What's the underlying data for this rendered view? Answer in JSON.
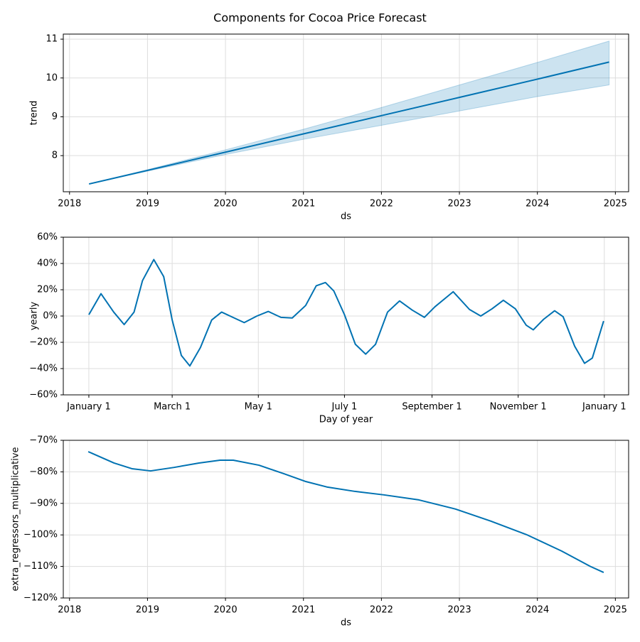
{
  "title": "Components for Cocoa Price Forecast",
  "chart_data": [
    {
      "type": "line",
      "xlabel": "ds",
      "ylabel": "trend",
      "color": "#0072b2",
      "band_color": "#0072b2",
      "grid": true,
      "x": [
        2018.25,
        2019,
        2020,
        2021,
        2022,
        2023,
        2024,
        2024.92
      ],
      "values": [
        7.27,
        7.62,
        8.09,
        8.56,
        9.03,
        9.5,
        9.97,
        10.41
      ],
      "lower": [
        7.27,
        7.6,
        8.03,
        8.42,
        8.78,
        9.15,
        9.52,
        9.82
      ],
      "upper": [
        7.27,
        7.64,
        8.15,
        8.68,
        9.24,
        9.82,
        10.4,
        10.95
      ],
      "xlim": [
        2017.92,
        2025.17
      ],
      "xticks": [
        2018,
        2019,
        2020,
        2021,
        2022,
        2023,
        2024,
        2025
      ],
      "ylim": [
        7.07,
        11.13
      ],
      "yticks": [
        8,
        9,
        10,
        11
      ]
    },
    {
      "type": "line",
      "xlabel": "Day of year",
      "ylabel": "yearly",
      "color": "#0072b2",
      "grid": true,
      "x": [
        0,
        8.6,
        17.6,
        25,
        32,
        38,
        46,
        53,
        59,
        65.5,
        71.5,
        79,
        87,
        94,
        102,
        110,
        119,
        127,
        136,
        144,
        153.5,
        161,
        167.5,
        173.5,
        181,
        188.7,
        196,
        203,
        211.5,
        220,
        229,
        237.6,
        245,
        258,
        269.5,
        277.5,
        285.5,
        293.5,
        302,
        309.7,
        314.7,
        322,
        329.8,
        335.8,
        344,
        351,
        356.5,
        364.5
      ],
      "values": [
        1,
        17,
        3,
        -6.5,
        3,
        27,
        43,
        30,
        -3,
        -30,
        -38,
        -24,
        -3,
        3,
        -1,
        -5,
        0,
        3.5,
        -1,
        -1.5,
        8,
        23,
        25.5,
        19,
        1,
        -21.5,
        -29,
        -21.5,
        3,
        11.5,
        4.5,
        -1,
        7,
        18.5,
        5,
        0,
        5.5,
        12,
        5.5,
        -7,
        -10.5,
        -2.5,
        4,
        -0.5,
        -23,
        -36,
        -32,
        -3.8
      ],
      "xlim": [
        -18.1,
        382.2
      ],
      "xticks": [
        {
          "value": 0,
          "label": "January 1"
        },
        {
          "value": 59,
          "label": "March 1"
        },
        {
          "value": 120,
          "label": "May 1"
        },
        {
          "value": 181,
          "label": "July 1"
        },
        {
          "value": 243,
          "label": "September 1"
        },
        {
          "value": 304,
          "label": "November 1"
        },
        {
          "value": 365,
          "label": "January 1"
        }
      ],
      "ylim": [
        -60,
        60
      ],
      "yticks": [
        {
          "value": -60,
          "label": "−60%"
        },
        {
          "value": -40,
          "label": "−40%"
        },
        {
          "value": -20,
          "label": "−20%"
        },
        {
          "value": 0,
          "label": "0%"
        },
        {
          "value": 20,
          "label": "20%"
        },
        {
          "value": 40,
          "label": "40%"
        },
        {
          "value": 60,
          "label": "60%"
        }
      ]
    },
    {
      "type": "line",
      "xlabel": "ds",
      "ylabel": "extra_regressors_multiplicative",
      "color": "#0072b2",
      "grid": true,
      "x": [
        2018.24,
        2018.57,
        2018.8,
        2019.04,
        2019.34,
        2019.66,
        2019.93,
        2020.1,
        2020.43,
        2020.75,
        2021.02,
        2021.3,
        2021.66,
        2022.03,
        2022.48,
        2022.95,
        2023.4,
        2023.86,
        2024.31,
        2024.68,
        2024.85
      ],
      "values": [
        -73.6,
        -77.2,
        -79,
        -79.7,
        -78.6,
        -77.2,
        -76.3,
        -76.3,
        -77.9,
        -80.6,
        -83,
        -84.8,
        -86.2,
        -87.3,
        -88.9,
        -91.8,
        -95.6,
        -99.9,
        -105.1,
        -110,
        -111.9
      ],
      "xlim": [
        2017.92,
        2025.17
      ],
      "xticks": [
        2018,
        2019,
        2020,
        2021,
        2022,
        2023,
        2024,
        2025
      ],
      "ylim": [
        -120,
        -70
      ],
      "yticks": [
        {
          "value": -120,
          "label": "−120%"
        },
        {
          "value": -110,
          "label": "−110%"
        },
        {
          "value": -100,
          "label": "−100%"
        },
        {
          "value": -90,
          "label": "−90%"
        },
        {
          "value": -80,
          "label": "−80%"
        },
        {
          "value": -70,
          "label": "−70%"
        }
      ]
    }
  ]
}
